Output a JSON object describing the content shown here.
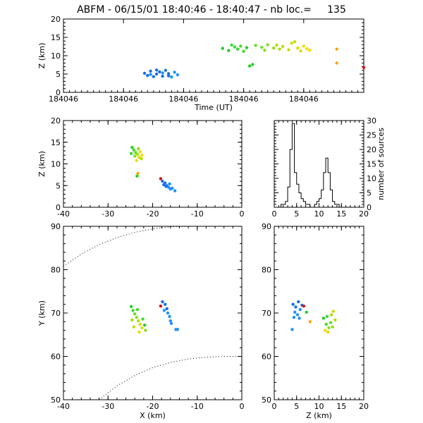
{
  "chart_data": [
    {
      "type": "scatter",
      "title": "ABFM - 06/15/01 18:40:46 - 18:40:47 - nb loc.=     135",
      "xlabel": "Time (UT)",
      "ylabel": "Z (km)",
      "x_tick_labels": [
        "184046",
        "184046",
        "184046",
        "184046",
        "184046"
      ],
      "y_ticks": [
        0,
        5,
        10,
        15,
        20
      ],
      "ylim": [
        0,
        20
      ],
      "x_positions": [
        0.0,
        0.2,
        0.4,
        0.6,
        0.8
      ],
      "points": [
        {
          "t": 0.27,
          "z": 5.2,
          "color": "#1a6fe0"
        },
        {
          "t": 0.28,
          "z": 4.6,
          "color": "#1a6fe0"
        },
        {
          "t": 0.29,
          "z": 5.8,
          "color": "#1a6fe0"
        },
        {
          "t": 0.3,
          "z": 4.3,
          "color": "#1a6fe0"
        },
        {
          "t": 0.31,
          "z": 5.0,
          "color": "#1a6fe0"
        },
        {
          "t": 0.32,
          "z": 5.6,
          "color": "#1a6fe0"
        },
        {
          "t": 0.33,
          "z": 4.4,
          "color": "#1a6fe0"
        },
        {
          "t": 0.34,
          "z": 6.0,
          "color": "#1a6fe0"
        },
        {
          "t": 0.35,
          "z": 5.1,
          "color": "#1a6fe0"
        },
        {
          "t": 0.36,
          "z": 4.2,
          "color": "#1e90ff"
        },
        {
          "t": 0.37,
          "z": 5.5,
          "color": "#1e90ff"
        },
        {
          "t": 0.38,
          "z": 4.8,
          "color": "#1e90ff"
        },
        {
          "t": 0.29,
          "z": 4.9,
          "color": "#1e90ff"
        },
        {
          "t": 0.33,
          "z": 5.3,
          "color": "#1e90ff"
        },
        {
          "t": 0.35,
          "z": 4.5,
          "color": "#1a6fe0"
        },
        {
          "t": 0.31,
          "z": 6.1,
          "color": "#1a6fe0"
        },
        {
          "t": 0.53,
          "z": 12.0,
          "color": "#22cc22"
        },
        {
          "t": 0.55,
          "z": 11.4,
          "color": "#22cc22"
        },
        {
          "t": 0.57,
          "z": 12.4,
          "color": "#33dd33"
        },
        {
          "t": 0.58,
          "z": 11.8,
          "color": "#33dd33"
        },
        {
          "t": 0.59,
          "z": 12.6,
          "color": "#44dd22"
        },
        {
          "t": 0.6,
          "z": 11.2,
          "color": "#44dd22"
        },
        {
          "t": 0.61,
          "z": 12.2,
          "color": "#22cc22"
        },
        {
          "t": 0.62,
          "z": 7.2,
          "color": "#22cc22"
        },
        {
          "t": 0.63,
          "z": 7.6,
          "color": "#22cc22"
        },
        {
          "t": 0.64,
          "z": 12.8,
          "color": "#66dd22"
        },
        {
          "t": 0.66,
          "z": 12.3,
          "color": "#77dd22"
        },
        {
          "t": 0.68,
          "z": 13.0,
          "color": "#88dd22"
        },
        {
          "t": 0.7,
          "z": 12.1,
          "color": "#99dd11"
        },
        {
          "t": 0.71,
          "z": 12.9,
          "color": "#aadd11"
        },
        {
          "t": 0.72,
          "z": 11.8,
          "color": "#aadd11"
        },
        {
          "t": 0.73,
          "z": 12.5,
          "color": "#bbdd00"
        },
        {
          "t": 0.75,
          "z": 11.6,
          "color": "#ccdd00"
        },
        {
          "t": 0.76,
          "z": 13.4,
          "color": "#ccdd00"
        },
        {
          "t": 0.77,
          "z": 13.8,
          "color": "#ccdd00"
        },
        {
          "t": 0.78,
          "z": 12.1,
          "color": "#dddd00"
        },
        {
          "t": 0.79,
          "z": 11.3,
          "color": "#dddd00"
        },
        {
          "t": 0.8,
          "z": 12.6,
          "color": "#eedd00"
        },
        {
          "t": 0.81,
          "z": 11.9,
          "color": "#eedd00"
        },
        {
          "t": 0.82,
          "z": 11.5,
          "color": "#eedd00"
        },
        {
          "t": 0.56,
          "z": 12.9,
          "color": "#33dd33"
        },
        {
          "t": 0.67,
          "z": 11.5,
          "color": "#88dd22"
        },
        {
          "t": 0.91,
          "z": 11.8,
          "color": "#ffa500"
        },
        {
          "t": 0.91,
          "z": 8.0,
          "color": "#ffa500"
        },
        {
          "t": 1.0,
          "z": 6.8,
          "color": "#dd1111"
        }
      ]
    },
    {
      "type": "scatter",
      "xlabel": "",
      "ylabel": "Z (km)",
      "xlim": [
        -40,
        0
      ],
      "ylim": [
        0,
        20
      ],
      "x_ticks": [
        -40,
        -30,
        -20,
        -10,
        0
      ],
      "y_ticks": [
        0,
        5,
        10,
        15,
        20
      ],
      "points": [
        {
          "x": -24.6,
          "z": 13.8,
          "color": "#22cc22"
        },
        {
          "x": -24.2,
          "z": 13.2,
          "color": "#44dd22"
        },
        {
          "x": -23.8,
          "z": 12.6,
          "color": "#66dd22"
        },
        {
          "x": -24.0,
          "z": 11.8,
          "color": "#88dd22"
        },
        {
          "x": -23.4,
          "z": 12.2,
          "color": "#aadd11"
        },
        {
          "x": -23.0,
          "z": 11.5,
          "color": "#ccdd00"
        },
        {
          "x": -22.8,
          "z": 12.8,
          "color": "#dddd00"
        },
        {
          "x": -23.6,
          "z": 10.8,
          "color": "#eedd00"
        },
        {
          "x": -22.5,
          "z": 11.2,
          "color": "#bbdd00"
        },
        {
          "x": -24.8,
          "z": 12.4,
          "color": "#33dd33"
        },
        {
          "x": -23.2,
          "z": 13.5,
          "color": "#99dd11"
        },
        {
          "x": -22.4,
          "z": 12.0,
          "color": "#eedd00"
        },
        {
          "x": -23.5,
          "z": 7.2,
          "color": "#22cc22"
        },
        {
          "x": -23.3,
          "z": 7.8,
          "color": "#ffa500"
        },
        {
          "x": -18.2,
          "z": 6.6,
          "color": "#dd1111"
        },
        {
          "x": -17.8,
          "z": 6.0,
          "color": "#1a6fe0"
        },
        {
          "x": -17.2,
          "z": 5.6,
          "color": "#1a6fe0"
        },
        {
          "x": -16.8,
          "z": 5.0,
          "color": "#1e90ff"
        },
        {
          "x": -16.4,
          "z": 4.6,
          "color": "#1e90ff"
        },
        {
          "x": -16.0,
          "z": 4.2,
          "color": "#1e90ff"
        },
        {
          "x": -17.5,
          "z": 5.2,
          "color": "#1a6fe0"
        },
        {
          "x": -16.2,
          "z": 5.4,
          "color": "#1e90ff"
        },
        {
          "x": -15.6,
          "z": 4.4,
          "color": "#1e90ff"
        },
        {
          "x": -15.0,
          "z": 3.8,
          "color": "#1e90ff"
        },
        {
          "x": -17.0,
          "z": 4.8,
          "color": "#1a6fe0"
        }
      ]
    },
    {
      "type": "histogram",
      "xlabel": "",
      "ylabel": "number of sources",
      "xlim": [
        0,
        20
      ],
      "ylim": [
        0,
        30
      ],
      "x_ticks": [
        0,
        5,
        10,
        15,
        20
      ],
      "y_ticks": [
        0,
        5,
        10,
        15,
        20,
        25,
        30
      ],
      "bin_width": 0.5,
      "bins_start": 1.5,
      "counts": [
        1,
        1,
        2,
        7,
        20,
        29,
        12,
        8,
        5,
        3,
        2,
        1,
        1,
        0,
        0,
        1,
        2,
        3,
        6,
        12,
        17,
        12,
        6,
        2,
        1,
        1,
        0
      ]
    },
    {
      "type": "scatter",
      "xlabel": "X (km)",
      "ylabel": "Y (km)",
      "xlim": [
        -40,
        0
      ],
      "ylim": [
        50,
        90
      ],
      "x_ticks": [
        -40,
        -30,
        -20,
        -10,
        0
      ],
      "y_ticks": [
        50,
        60,
        70,
        80,
        90
      ],
      "points": [
        {
          "x": -24.8,
          "y": 71.5,
          "color": "#22cc22"
        },
        {
          "x": -24.4,
          "y": 70.6,
          "color": "#33dd33"
        },
        {
          "x": -24.0,
          "y": 69.8,
          "color": "#66dd22"
        },
        {
          "x": -23.6,
          "y": 69.0,
          "color": "#88dd22"
        },
        {
          "x": -23.2,
          "y": 68.2,
          "color": "#aadd11"
        },
        {
          "x": -22.8,
          "y": 67.4,
          "color": "#ccdd00"
        },
        {
          "x": -22.4,
          "y": 66.6,
          "color": "#dddd00"
        },
        {
          "x": -23.0,
          "y": 65.6,
          "color": "#eedd00"
        },
        {
          "x": -24.2,
          "y": 66.8,
          "color": "#bbdd00"
        },
        {
          "x": -22.2,
          "y": 68.6,
          "color": "#44dd22"
        },
        {
          "x": -21.8,
          "y": 67.2,
          "color": "#22cc22"
        },
        {
          "x": -24.6,
          "y": 68.4,
          "color": "#99dd11"
        },
        {
          "x": -23.4,
          "y": 70.8,
          "color": "#44dd22"
        },
        {
          "x": -21.6,
          "y": 66.0,
          "color": "#88dd22"
        },
        {
          "x": -18.2,
          "y": 71.6,
          "color": "#dd1111"
        },
        {
          "x": -17.8,
          "y": 72.6,
          "color": "#1a6fe0"
        },
        {
          "x": -17.2,
          "y": 72.0,
          "color": "#1a6fe0"
        },
        {
          "x": -16.8,
          "y": 71.0,
          "color": "#1a6fe0"
        },
        {
          "x": -16.6,
          "y": 70.0,
          "color": "#1e90ff"
        },
        {
          "x": -16.2,
          "y": 69.2,
          "color": "#1e90ff"
        },
        {
          "x": -16.0,
          "y": 68.2,
          "color": "#1e90ff"
        },
        {
          "x": -17.4,
          "y": 70.6,
          "color": "#1e90ff"
        },
        {
          "x": -15.8,
          "y": 67.6,
          "color": "#1e90ff"
        },
        {
          "x": -14.8,
          "y": 66.2,
          "color": "#1e90ff"
        },
        {
          "x": -14.4,
          "y": 66.2,
          "color": "#1e90ff"
        }
      ],
      "boundary_curves": [
        {
          "points": [
            [
              -40,
              80.8
            ],
            [
              -36,
              83.6
            ],
            [
              -32,
              85.8
            ],
            [
              -28,
              87.4
            ],
            [
              -24,
              88.6
            ],
            [
              -20,
              89.4
            ],
            [
              -16,
              89.9
            ],
            [
              -12,
              90.0
            ]
          ]
        },
        {
          "points": [
            [
              -32,
              50.0
            ],
            [
              -28,
              53.2
            ],
            [
              -24,
              55.6
            ],
            [
              -20,
              57.4
            ],
            [
              -16,
              58.6
            ],
            [
              -12,
              59.4
            ],
            [
              -8,
              59.8
            ],
            [
              -4,
              60.0
            ],
            [
              0,
              60.0
            ]
          ]
        }
      ]
    },
    {
      "type": "scatter",
      "xlabel": "Z (km)",
      "ylabel": "",
      "xlim": [
        0,
        20
      ],
      "ylim": [
        50,
        90
      ],
      "x_ticks": [
        0,
        5,
        10,
        15,
        20
      ],
      "y_ticks": [
        50,
        60,
        70,
        80,
        90
      ],
      "points": [
        {
          "z": 4.2,
          "y": 72.0,
          "color": "#1a6fe0"
        },
        {
          "z": 4.8,
          "y": 71.4,
          "color": "#1a6fe0"
        },
        {
          "z": 5.4,
          "y": 72.6,
          "color": "#1a6fe0"
        },
        {
          "z": 5.8,
          "y": 70.8,
          "color": "#1e90ff"
        },
        {
          "z": 4.6,
          "y": 70.2,
          "color": "#1e90ff"
        },
        {
          "z": 5.2,
          "y": 69.6,
          "color": "#1e90ff"
        },
        {
          "z": 6.2,
          "y": 71.8,
          "color": "#1a6fe0"
        },
        {
          "z": 4.4,
          "y": 69.0,
          "color": "#1e90ff"
        },
        {
          "z": 5.6,
          "y": 68.8,
          "color": "#1e90ff"
        },
        {
          "z": 6.6,
          "y": 71.6,
          "color": "#dd1111"
        },
        {
          "z": 4.0,
          "y": 66.2,
          "color": "#1e90ff"
        },
        {
          "z": 7.2,
          "y": 70.2,
          "color": "#22cc22"
        },
        {
          "z": 8.0,
          "y": 68.0,
          "color": "#ffa500"
        },
        {
          "z": 11.0,
          "y": 68.8,
          "color": "#22cc22"
        },
        {
          "z": 11.6,
          "y": 67.4,
          "color": "#44dd22"
        },
        {
          "z": 12.2,
          "y": 66.6,
          "color": "#88dd22"
        },
        {
          "z": 12.8,
          "y": 69.6,
          "color": "#aadd11"
        },
        {
          "z": 13.2,
          "y": 70.4,
          "color": "#ccdd00"
        },
        {
          "z": 12.0,
          "y": 65.6,
          "color": "#dddd00"
        },
        {
          "z": 11.4,
          "y": 66.0,
          "color": "#eedd00"
        },
        {
          "z": 13.6,
          "y": 68.4,
          "color": "#bbdd00"
        },
        {
          "z": 12.6,
          "y": 67.8,
          "color": "#66dd22"
        },
        {
          "z": 11.8,
          "y": 69.2,
          "color": "#33dd33"
        },
        {
          "z": 13.0,
          "y": 66.8,
          "color": "#99dd11"
        }
      ]
    }
  ]
}
